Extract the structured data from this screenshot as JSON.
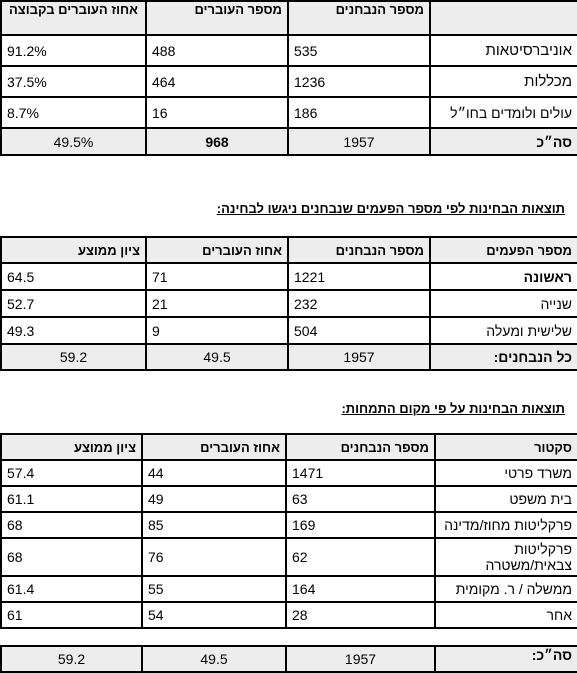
{
  "table1": {
    "headers": [
      "",
      "מספר הנבחנים",
      "מספר העוברים",
      "אחוז העוברים בקבוצה"
    ],
    "rows": [
      [
        "אוניברסיטאות",
        "535",
        "488",
        "91.2%"
      ],
      [
        "מכללות",
        "1236",
        "464",
        "37.5%"
      ],
      [
        "עולים ולומדים בחו״ל",
        "186",
        "16",
        "8.7%"
      ]
    ],
    "total": [
      "סה״כ",
      "1957",
      "968",
      "49.5%"
    ]
  },
  "caption2": "תוצאות הבחינות לפי מספר הפעמים שנבחנים ניגשו לבחינה:",
  "table2": {
    "headers": [
      "מספר הפעמים",
      "מספר הנבחנים",
      "אחוז העוברים",
      "ציון ממוצע"
    ],
    "rows": [
      [
        "ראשונה",
        "1221",
        "71",
        "64.5"
      ],
      [
        "שנייה",
        "232",
        "21",
        "52.7"
      ],
      [
        "שלישית ומעלה",
        "504",
        "9",
        "49.3"
      ]
    ],
    "total": [
      "כל הנבחנים:",
      "1957",
      "49.5",
      "59.2"
    ]
  },
  "caption3": "תוצאות הבחינות על פי מקום התמחות:",
  "table3": {
    "headers": [
      "סקטור",
      "מספר הנבחנים",
      "אחוז העוברים",
      "ציון ממוצע"
    ],
    "rows": [
      [
        "משרד פרטי",
        "1471",
        "44",
        "57.4"
      ],
      [
        "בית משפט",
        "63",
        "49",
        "61.1"
      ],
      [
        "פרקליטות מחוז/מדינה",
        "169",
        "85",
        "68"
      ],
      [
        "פרקליטות צבאית/משטרה",
        "62",
        "76",
        "68"
      ],
      [
        "ממשלה / ר. מקומית",
        "164",
        "55",
        "61.4"
      ],
      [
        "אחר",
        "28",
        "54",
        "61"
      ]
    ],
    "total": [
      "סה״כ:",
      "1957",
      "49.5",
      "59.2"
    ]
  }
}
